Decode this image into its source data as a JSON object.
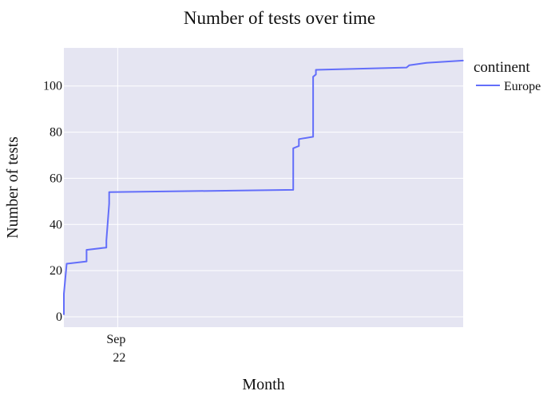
{
  "chart_data": {
    "type": "line",
    "title": "Number of tests over time",
    "xlabel": "Month",
    "ylabel": "Number of tests",
    "x_tick_labels": [
      {
        "label": "Sep",
        "sublabel": "22",
        "date": "2022-09-01"
      }
    ],
    "xlim": [
      "2022-08-13",
      "2023-01-01"
    ],
    "ylim": [
      -4.5,
      116.5
    ],
    "y_ticks": [
      0,
      20,
      40,
      60,
      80,
      100
    ],
    "grid": true,
    "legend": {
      "title": "continent",
      "position": "right"
    },
    "series": [
      {
        "name": "Europe",
        "color": "#636efa",
        "points": [
          [
            "2022-08-13",
            1
          ],
          [
            "2022-08-13",
            3
          ],
          [
            "2022-08-13",
            9
          ],
          [
            "2022-08-13",
            10
          ],
          [
            "2022-08-14",
            23
          ],
          [
            "2022-08-21",
            24
          ],
          [
            "2022-08-21",
            28
          ],
          [
            "2022-08-21",
            29
          ],
          [
            "2022-08-28",
            30
          ],
          [
            "2022-08-28",
            32
          ],
          [
            "2022-08-28",
            33
          ],
          [
            "2022-08-29",
            49
          ],
          [
            "2022-08-29",
            50
          ],
          [
            "2022-08-29",
            54
          ],
          [
            "2022-11-02",
            55
          ],
          [
            "2022-11-02",
            62
          ],
          [
            "2022-11-02",
            73
          ],
          [
            "2022-11-04",
            74
          ],
          [
            "2022-11-04",
            77
          ],
          [
            "2022-11-09",
            78
          ],
          [
            "2022-11-09",
            104
          ],
          [
            "2022-11-10",
            105
          ],
          [
            "2022-11-10",
            107
          ],
          [
            "2022-12-12",
            108
          ],
          [
            "2022-12-13",
            109
          ],
          [
            "2022-12-19",
            110
          ],
          [
            "2023-01-01",
            111
          ]
        ]
      }
    ]
  }
}
